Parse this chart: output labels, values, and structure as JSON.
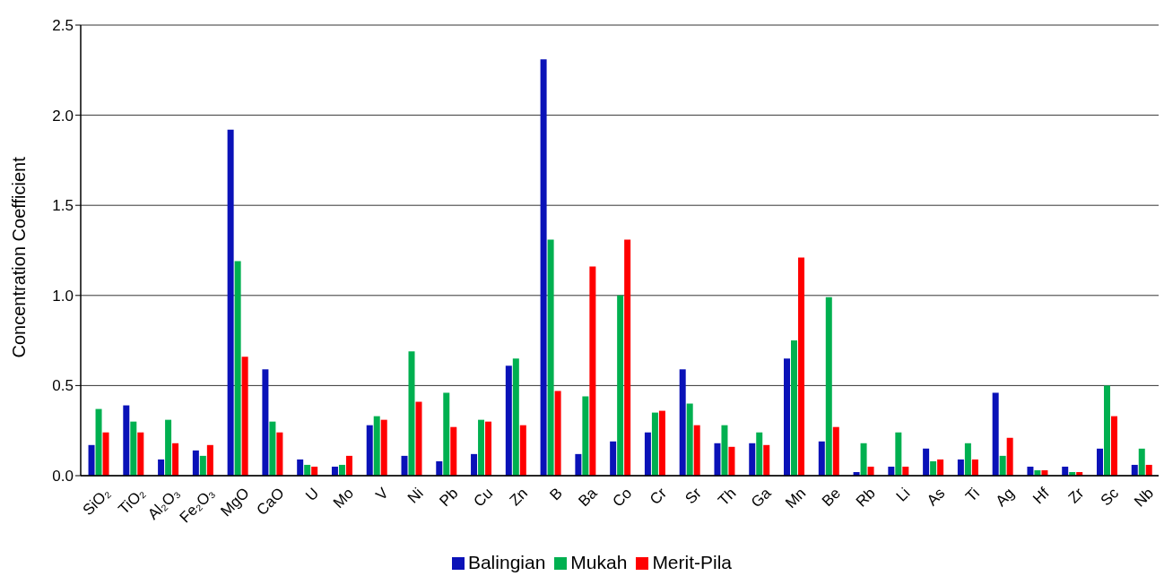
{
  "chart_data": {
    "type": "bar",
    "ylabel": "Concentration Coefficient",
    "categories": [
      "SiO₂",
      "TiO₂",
      "Al₂O₃",
      "Fe₂O₃",
      "MgO",
      "CaO",
      "U",
      "Mo",
      "V",
      "Ni",
      "Pb",
      "Cu",
      "Zn",
      "B",
      "Ba",
      "Co",
      "Cr",
      "Sr",
      "Th",
      "Ga",
      "Mn",
      "Be",
      "Rb",
      "Li",
      "As",
      "Ti",
      "Ag",
      "Hf",
      "Zr",
      "Sc",
      "Nb"
    ],
    "series": [
      {
        "name": "Balingian",
        "color": "#0a12b8",
        "values": [
          0.17,
          0.39,
          0.09,
          0.14,
          1.92,
          0.59,
          0.09,
          0.05,
          0.28,
          0.11,
          0.08,
          0.12,
          0.61,
          2.31,
          0.12,
          0.19,
          0.24,
          0.59,
          0.18,
          0.18,
          0.65,
          0.19,
          0.02,
          0.05,
          0.15,
          0.09,
          0.46,
          0.05,
          0.05,
          0.15,
          0.06
        ]
      },
      {
        "name": "Mukah",
        "color": "#00b050",
        "values": [
          0.37,
          0.3,
          0.31,
          0.11,
          1.19,
          0.3,
          0.06,
          0.06,
          0.33,
          0.69,
          0.46,
          0.31,
          0.65,
          1.31,
          0.44,
          1.0,
          0.35,
          0.4,
          0.28,
          0.24,
          0.75,
          0.99,
          0.18,
          0.24,
          0.08,
          0.18,
          0.11,
          0.03,
          0.02,
          0.5,
          0.15
        ]
      },
      {
        "name": "Merit-Pila",
        "color": "#ff0000",
        "values": [
          0.24,
          0.24,
          0.18,
          0.17,
          0.66,
          0.24,
          0.05,
          0.11,
          0.31,
          0.41,
          0.27,
          0.3,
          0.28,
          0.47,
          1.16,
          1.31,
          0.36,
          0.28,
          0.16,
          0.17,
          1.21,
          0.27,
          0.05,
          0.05,
          0.09,
          0.09,
          0.21,
          0.03,
          0.02,
          0.33,
          0.06
        ]
      }
    ],
    "ylim": [
      0,
      2.5
    ],
    "yticks": [
      {
        "value": 0,
        "label": "0.0"
      },
      {
        "value": 0.5,
        "label": "0.5"
      },
      {
        "value": 1,
        "label": "1.0"
      },
      {
        "value": 1.5,
        "label": "1.5"
      },
      {
        "value": 2,
        "label": "2.0"
      },
      {
        "value": 2.5,
        "label": "2.5"
      }
    ],
    "grid": "y",
    "legend": "bottom"
  }
}
